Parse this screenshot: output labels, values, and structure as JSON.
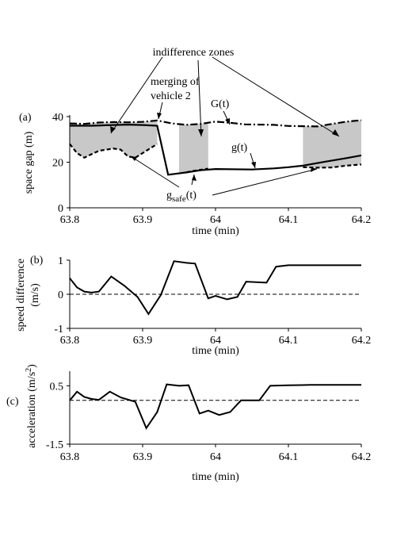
{
  "chart_data": [
    {
      "type": "line",
      "panel_label": "(a)",
      "xlabel": "time (min)",
      "ylabel": "space gap (m)",
      "xlim": [
        63.8,
        64.2
      ],
      "ylim": [
        0,
        40
      ],
      "x_ticks": [
        "63.8",
        "63.9",
        "64",
        "64.1",
        "64.2"
      ],
      "y_ticks": [
        "0",
        "20",
        "40"
      ],
      "series": [
        {
          "name": "G(t)",
          "style": "dash-dot",
          "points": [
            [
              63.8,
              37
            ],
            [
              63.82,
              36.8
            ],
            [
              63.84,
              37.4
            ],
            [
              63.86,
              37.6
            ],
            [
              63.88,
              37.5
            ],
            [
              63.9,
              37.7
            ],
            [
              63.92,
              38.3
            ],
            [
              63.94,
              37
            ],
            [
              63.96,
              36.4
            ],
            [
              63.98,
              36.8
            ],
            [
              64.0,
              37.8
            ],
            [
              64.02,
              37.3
            ],
            [
              64.04,
              36.6
            ],
            [
              64.06,
              36.5
            ],
            [
              64.08,
              36.4
            ],
            [
              64.1,
              35.9
            ],
            [
              64.12,
              35.8
            ],
            [
              64.14,
              35.7
            ],
            [
              64.16,
              36.8
            ],
            [
              64.18,
              37.8
            ],
            [
              64.2,
              38.4
            ]
          ]
        },
        {
          "name": "g(t)",
          "style": "solid",
          "points": [
            [
              63.8,
              36
            ],
            [
              63.83,
              36
            ],
            [
              63.85,
              36.2
            ],
            [
              63.88,
              36.5
            ],
            [
              63.9,
              36.3
            ],
            [
              63.92,
              36.0
            ],
            [
              63.935,
              14.5
            ],
            [
              63.96,
              15.5
            ],
            [
              63.98,
              16.5
            ],
            [
              64.0,
              17
            ],
            [
              64.05,
              16.8
            ],
            [
              64.08,
              17.3
            ],
            [
              64.1,
              17.8
            ],
            [
              64.12,
              18.5
            ],
            [
              64.15,
              20.2
            ],
            [
              64.18,
              21.8
            ],
            [
              64.2,
              23
            ]
          ]
        },
        {
          "name": "g_safe(t)",
          "style": "dashed",
          "points": [
            [
              63.8,
              28
            ],
            [
              63.81,
              24
            ],
            [
              63.82,
              22
            ],
            [
              63.83,
              23.5
            ],
            [
              63.84,
              25
            ],
            [
              63.86,
              26
            ],
            [
              63.87,
              25.5
            ],
            [
              63.88,
              22.5
            ],
            [
              63.89,
              22
            ],
            [
              63.9,
              24
            ],
            [
              63.92,
              28
            ]
          ]
        },
        {
          "name": "g_safe(t)",
          "style": "dashed",
          "points": [
            [
              63.96,
              15.6
            ],
            [
              63.97,
              16.2
            ],
            [
              63.98,
              16.7
            ],
            [
              63.99,
              17.2
            ]
          ]
        },
        {
          "name": "g_safe(t)",
          "style": "dashed",
          "points": [
            [
              64.12,
              17.8
            ],
            [
              64.14,
              17.6
            ],
            [
              64.16,
              17.7
            ],
            [
              64.18,
              18.5
            ],
            [
              64.2,
              19
            ]
          ]
        }
      ],
      "shaded_zones": [
        {
          "x_from": 63.8,
          "x_to": 63.92,
          "lower": "g_safe(t)",
          "upper": "G(t)"
        },
        {
          "x_from": 63.95,
          "x_to": 63.99,
          "lower": "g_safe(t)",
          "upper": "G(t)"
        },
        {
          "x_from": 64.12,
          "x_to": 64.2,
          "lower": "g_safe(t)",
          "upper": "G(t)"
        }
      ],
      "annotations": {
        "indifference_zones": "indifference zones",
        "merging_line1": "merging of",
        "merging_line2": "vehicle 2",
        "G_label": "G(t)",
        "g_label": "g(t)",
        "gsafe_main": "g",
        "gsafe_sub": "safe",
        "gsafe_tail": "(t)"
      }
    },
    {
      "type": "line",
      "panel_label": "(b)",
      "xlabel": "time (min)",
      "ylabel_line1": "speed difference",
      "ylabel_line2": "(m/s)",
      "xlim": [
        63.8,
        64.2
      ],
      "ylim": [
        -1,
        1
      ],
      "x_ticks": [
        "63.8",
        "63.9",
        "64",
        "64.1",
        "64.2"
      ],
      "y_ticks": [
        "-1",
        "0",
        "1"
      ],
      "reference_line": 0,
      "points": [
        [
          63.8,
          0.47
        ],
        [
          63.81,
          0.2
        ],
        [
          63.82,
          0.08
        ],
        [
          63.83,
          0.05
        ],
        [
          63.84,
          0.08
        ],
        [
          63.857,
          0.52
        ],
        [
          63.875,
          0.25
        ],
        [
          63.893,
          -0.08
        ],
        [
          63.908,
          -0.58
        ],
        [
          63.925,
          -0.02
        ],
        [
          63.943,
          0.97
        ],
        [
          63.96,
          0.92
        ],
        [
          63.972,
          0.9
        ],
        [
          63.99,
          -0.12
        ],
        [
          64.0,
          -0.05
        ],
        [
          64.016,
          -0.15
        ],
        [
          64.03,
          -0.08
        ],
        [
          64.042,
          0.37
        ],
        [
          64.07,
          0.34
        ],
        [
          64.083,
          0.81
        ],
        [
          64.1,
          0.85
        ],
        [
          64.12,
          0.85
        ],
        [
          64.15,
          0.85
        ],
        [
          64.2,
          0.85
        ]
      ]
    },
    {
      "type": "line",
      "panel_label": "(c)",
      "xlabel": "time (min)",
      "ylabel_main": "acceleration (m/s",
      "ylabel_sup": "2",
      "ylabel_tail": ")",
      "xlim": [
        63.8,
        64.2
      ],
      "ylim": [
        -1.5,
        1.0
      ],
      "x_ticks": [
        "63.8",
        "63.9",
        "64",
        "64.1",
        "64.2"
      ],
      "y_ticks": [
        "-1.5",
        "0.5"
      ],
      "reference_line": 0.0,
      "points": [
        [
          63.8,
          0.0
        ],
        [
          63.81,
          0.3
        ],
        [
          63.82,
          0.12
        ],
        [
          63.83,
          0.05
        ],
        [
          63.84,
          0.02
        ],
        [
          63.855,
          0.3
        ],
        [
          63.87,
          0.1
        ],
        [
          63.89,
          -0.05
        ],
        [
          63.905,
          -0.95
        ],
        [
          63.92,
          -0.4
        ],
        [
          63.933,
          0.55
        ],
        [
          63.95,
          0.5
        ],
        [
          63.963,
          0.52
        ],
        [
          63.978,
          -0.45
        ],
        [
          63.99,
          -0.35
        ],
        [
          64.005,
          -0.5
        ],
        [
          64.02,
          -0.4
        ],
        [
          64.035,
          0.0
        ],
        [
          64.06,
          0.0
        ],
        [
          64.075,
          0.5
        ],
        [
          64.1,
          0.52
        ],
        [
          64.13,
          0.53
        ],
        [
          64.2,
          0.53
        ]
      ]
    }
  ]
}
